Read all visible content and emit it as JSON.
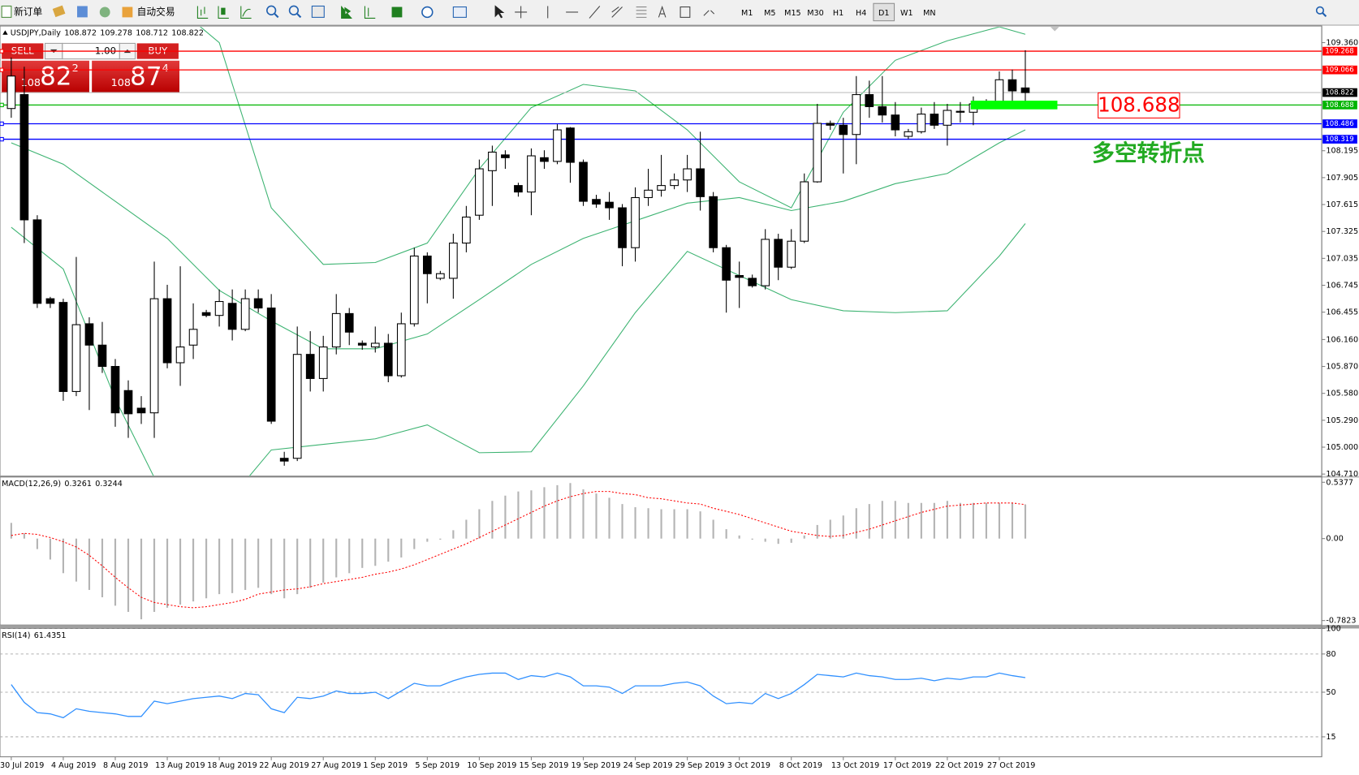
{
  "toolbar": {
    "new_order": "新订单",
    "auto_trading": "自动交易",
    "timeframes": [
      "M1",
      "M5",
      "M15",
      "M30",
      "H1",
      "H4",
      "D1",
      "W1",
      "MN"
    ]
  },
  "trade_panel": {
    "sell": "SELL",
    "buy": "BUY",
    "lot": "1.00",
    "sell_price": {
      "big": "108",
      "main": "82",
      "small": "2"
    },
    "buy_price": {
      "big": "108",
      "main": "87",
      "small": "4"
    }
  },
  "chart_data": [
    {
      "type": "candlestick",
      "title": "USDJPY,Daily",
      "categories": [
        "30 Jul 2019",
        null,
        null,
        null,
        "4 Aug 2019",
        null,
        null,
        null,
        "8 Aug 2019",
        null,
        null,
        null,
        "13 Aug 2019",
        null,
        null,
        null,
        "18 Aug 2019",
        null,
        null,
        null,
        "22 Aug 2019",
        null,
        null,
        null,
        "27 Aug 2019",
        null,
        null,
        null,
        "1 Sep 2019",
        null,
        null,
        null,
        "5 Sep 2019",
        null,
        null,
        null,
        "10 Sep 2019",
        null,
        null,
        null,
        "15 Sep 2019",
        null,
        null,
        null,
        "19 Sep 2019",
        null,
        null,
        null,
        "24 Sep 2019",
        null,
        null,
        null,
        "29 Sep 2019",
        null,
        null,
        null,
        "3 Oct 2019",
        null,
        null,
        null,
        "8 Oct 2019",
        null,
        null,
        null,
        "13 Oct 2019",
        null,
        null,
        null,
        "17 Oct 2019",
        null,
        null,
        null,
        "22 Oct 2019",
        null,
        null,
        null,
        "27 Oct 2019",
        null,
        null
      ],
      "open": [
        108.65,
        108.8,
        107.45,
        106.6,
        106.56,
        105.6,
        106.33,
        106.1,
        105.87,
        105.61,
        105.42,
        105.37,
        106.6,
        105.91,
        106.1,
        106.45,
        106.42,
        106.55,
        106.27,
        106.6,
        106.5,
        104.88,
        104.88,
        106.0,
        105.74,
        106.08,
        106.44,
        106.12,
        106.08,
        106.12,
        105.77,
        106.33,
        107.06,
        106.82,
        106.82,
        107.2,
        107.5,
        107.98,
        108.15,
        107.82,
        107.75,
        108.12,
        108.08,
        108.44,
        108.07,
        107.67,
        107.64,
        107.58,
        107.15,
        107.69,
        107.77,
        107.82,
        107.88,
        108.0,
        107.7,
        107.15,
        106.85,
        106.82,
        106.74,
        107.24,
        106.94,
        107.22,
        107.86,
        108.49,
        108.47,
        108.37,
        108.8,
        108.67,
        108.58,
        108.35,
        108.4,
        108.59,
        108.47,
        108.62,
        108.61,
        108.7,
        108.7,
        108.96,
        108.872
      ],
      "high": [
        109.2,
        109.1,
        107.5,
        106.62,
        106.6,
        107.05,
        106.4,
        106.35,
        105.95,
        105.72,
        105.55,
        107.0,
        106.75,
        106.95,
        106.55,
        106.48,
        106.7,
        106.7,
        106.7,
        106.7,
        106.65,
        104.95,
        106.3,
        106.25,
        106.2,
        106.65,
        106.5,
        106.15,
        106.3,
        106.22,
        106.45,
        107.15,
        107.1,
        106.9,
        107.3,
        107.6,
        108.1,
        108.25,
        108.2,
        107.85,
        108.22,
        108.2,
        108.48,
        108.45,
        108.1,
        107.72,
        107.75,
        107.62,
        107.8,
        108.0,
        108.15,
        107.95,
        108.15,
        108.4,
        107.75,
        107.18,
        107.0,
        106.86,
        107.35,
        107.3,
        107.35,
        107.95,
        108.7,
        108.52,
        108.55,
        109.0,
        108.95,
        109.0,
        108.72,
        108.43,
        108.66,
        108.72,
        108.7,
        108.72,
        108.78,
        108.75,
        109.05,
        109.07,
        109.278
      ],
      "low": [
        108.55,
        107.2,
        106.5,
        106.5,
        105.5,
        105.55,
        105.4,
        105.8,
        105.22,
        105.1,
        105.25,
        105.1,
        105.85,
        105.66,
        105.95,
        106.4,
        106.3,
        106.15,
        106.25,
        106.45,
        105.25,
        104.8,
        104.85,
        105.6,
        105.6,
        106.0,
        106.1,
        106.05,
        106.02,
        105.7,
        105.75,
        106.3,
        106.55,
        106.8,
        106.6,
        107.1,
        107.45,
        107.6,
        108.0,
        107.7,
        107.5,
        108.0,
        108.05,
        107.85,
        107.6,
        107.58,
        107.45,
        106.95,
        107.0,
        107.6,
        107.7,
        107.78,
        107.75,
        107.55,
        107.1,
        106.45,
        106.5,
        106.72,
        106.7,
        106.8,
        106.92,
        107.2,
        107.85,
        108.42,
        107.95,
        108.05,
        108.55,
        108.5,
        108.35,
        108.32,
        108.38,
        108.43,
        108.25,
        108.5,
        108.47,
        108.65,
        108.68,
        108.7,
        108.712
      ],
      "close": [
        109.0,
        107.45,
        106.55,
        106.55,
        105.6,
        106.32,
        106.1,
        105.87,
        105.37,
        105.36,
        105.37,
        106.6,
        105.91,
        106.08,
        106.27,
        106.42,
        106.57,
        106.27,
        106.6,
        106.5,
        105.28,
        104.85,
        106.0,
        105.74,
        106.08,
        106.44,
        106.24,
        106.1,
        106.12,
        105.77,
        106.33,
        107.06,
        106.87,
        106.87,
        107.2,
        107.48,
        108.0,
        108.18,
        108.12,
        107.75,
        108.14,
        108.08,
        108.42,
        108.07,
        107.65,
        107.62,
        107.58,
        107.15,
        107.69,
        107.77,
        107.82,
        107.88,
        108.0,
        107.7,
        107.15,
        106.8,
        106.83,
        106.74,
        107.24,
        106.94,
        107.22,
        107.86,
        108.49,
        108.47,
        108.37,
        108.8,
        108.67,
        108.58,
        108.42,
        108.4,
        108.59,
        108.47,
        108.63,
        108.61,
        108.7,
        108.71,
        108.96,
        108.84,
        108.822
      ],
      "up_color": "#ffffff",
      "down_color": "#000000",
      "bands": {
        "color": "#3cb371",
        "x": [
          0,
          4,
          8,
          12,
          16,
          20,
          24,
          28,
          32,
          36,
          40,
          44,
          48,
          52,
          56,
          60,
          64,
          68,
          72,
          76,
          78
        ],
        "upper": [
          110.39,
          110.2,
          110.0,
          109.83,
          109.36,
          107.58,
          106.97,
          106.99,
          107.2,
          108.0,
          108.66,
          108.91,
          108.84,
          108.42,
          107.86,
          107.58,
          108.61,
          109.17,
          109.38,
          109.53,
          109.45
        ],
        "middle": [
          108.28,
          108.05,
          107.65,
          107.25,
          106.69,
          106.36,
          106.06,
          106.06,
          106.22,
          106.59,
          106.97,
          107.25,
          107.44,
          107.63,
          107.69,
          107.55,
          107.65,
          107.84,
          107.95,
          108.28,
          108.42
        ],
        "lower": [
          107.37,
          106.92,
          105.52,
          104.39,
          104.3,
          104.97,
          105.03,
          105.09,
          105.24,
          104.94,
          104.95,
          105.66,
          106.45,
          107.11,
          106.85,
          106.59,
          106.47,
          106.45,
          106.47,
          107.06,
          107.41
        ]
      },
      "ylim": [
        104.69,
        109.53
      ],
      "yticks": [
        {
          "value": 109.36,
          "label": "109.360"
        },
        108.195,
        107.905,
        107.615,
        107.325,
        107.035,
        106.745,
        106.455,
        {
          "value": 106.16,
          "label": "106.160"
        },
        {
          "value": 105.87,
          "label": "105.870"
        },
        {
          "value": 105.58,
          "label": "105.580"
        },
        {
          "value": 105.29,
          "label": "105.290"
        },
        {
          "value": 105,
          "label": "105.000"
        },
        {
          "value": 104.71,
          "label": "104.710"
        }
      ],
      "hlines": [
        {
          "value": 109.268,
          "color": "#ff0000"
        },
        {
          "value": 109.066,
          "color": "#ff0000"
        },
        {
          "value": 108.688,
          "color": "#00b400"
        },
        {
          "value": 108.486,
          "color": "#0000ff"
        },
        {
          "value": 108.319,
          "color": "#0000ff"
        }
      ],
      "annotation": "多空转折点"
    },
    {
      "type": "macd",
      "title": "MACD(12,26,9)",
      "hist_color": "#b4b4b4",
      "signal_color": "#ff0000",
      "histogram": [
        0.15,
        0.05,
        -0.1,
        -0.2,
        -0.33,
        -0.41,
        -0.49,
        -0.56,
        -0.64,
        -0.7,
        -0.77,
        -0.7,
        -0.66,
        -0.63,
        -0.6,
        -0.57,
        -0.53,
        -0.52,
        -0.49,
        -0.47,
        -0.53,
        -0.57,
        -0.53,
        -0.47,
        -0.42,
        -0.37,
        -0.33,
        -0.28,
        -0.26,
        -0.22,
        -0.18,
        -0.1,
        -0.03,
        -0.01,
        0.08,
        0.18,
        0.28,
        0.36,
        0.41,
        0.45,
        0.46,
        0.49,
        0.51,
        0.53,
        0.47,
        0.43,
        0.39,
        0.33,
        0.3,
        0.29,
        0.28,
        0.28,
        0.28,
        0.26,
        0.18,
        0.09,
        0.03,
        -0.01,
        -0.03,
        -0.05,
        -0.04,
        0.03,
        0.13,
        0.18,
        0.22,
        0.29,
        0.33,
        0.36,
        0.36,
        0.34,
        0.34,
        0.34,
        0.36,
        0.34,
        0.34,
        0.34,
        0.34,
        0.34,
        0.3261
      ],
      "signal": [
        0.03,
        0.05,
        0.04,
        0.01,
        -0.03,
        -0.08,
        -0.16,
        -0.26,
        -0.37,
        -0.47,
        -0.56,
        -0.61,
        -0.63,
        -0.65,
        -0.66,
        -0.65,
        -0.63,
        -0.61,
        -0.58,
        -0.53,
        -0.51,
        -0.49,
        -0.48,
        -0.46,
        -0.43,
        -0.41,
        -0.39,
        -0.37,
        -0.34,
        -0.32,
        -0.29,
        -0.25,
        -0.2,
        -0.15,
        -0.1,
        -0.05,
        0.01,
        0.07,
        0.13,
        0.19,
        0.25,
        0.31,
        0.36,
        0.4,
        0.43,
        0.45,
        0.45,
        0.43,
        0.42,
        0.39,
        0.38,
        0.36,
        0.34,
        0.33,
        0.29,
        0.26,
        0.23,
        0.19,
        0.15,
        0.11,
        0.07,
        0.05,
        0.03,
        0.02,
        0.03,
        0.06,
        0.09,
        0.13,
        0.17,
        0.21,
        0.25,
        0.28,
        0.31,
        0.32,
        0.33,
        0.34,
        0.34,
        0.34,
        0.3244
      ],
      "ylim": [
        -0.825,
        0.59
      ],
      "yticks": [
        0.5377,
        {
          "value": 0,
          "label": "0.00"
        },
        -0.7823
      ]
    },
    {
      "type": "line",
      "title": "RSI(14)",
      "color": "#3090ff",
      "values": [
        56,
        42,
        34,
        33,
        30,
        37,
        35,
        34,
        33,
        31,
        31,
        43,
        41,
        43,
        45,
        46,
        47,
        45,
        49,
        48,
        37,
        34,
        46,
        45,
        47,
        51,
        49,
        49,
        50,
        45,
        51,
        57,
        55,
        55,
        59,
        62,
        64,
        65,
        65,
        60,
        63,
        62,
        65,
        62,
        55,
        55,
        54,
        49,
        55,
        55,
        55,
        57,
        58,
        55,
        47,
        41,
        42,
        41,
        49,
        45,
        49,
        56,
        64,
        63,
        62,
        65,
        63,
        62,
        60,
        60,
        61,
        59,
        61,
        60,
        62,
        62,
        65,
        63,
        61.4351
      ],
      "ylim": [
        0,
        100
      ],
      "yticks": [
        100,
        80,
        50,
        15
      ]
    }
  ]
}
